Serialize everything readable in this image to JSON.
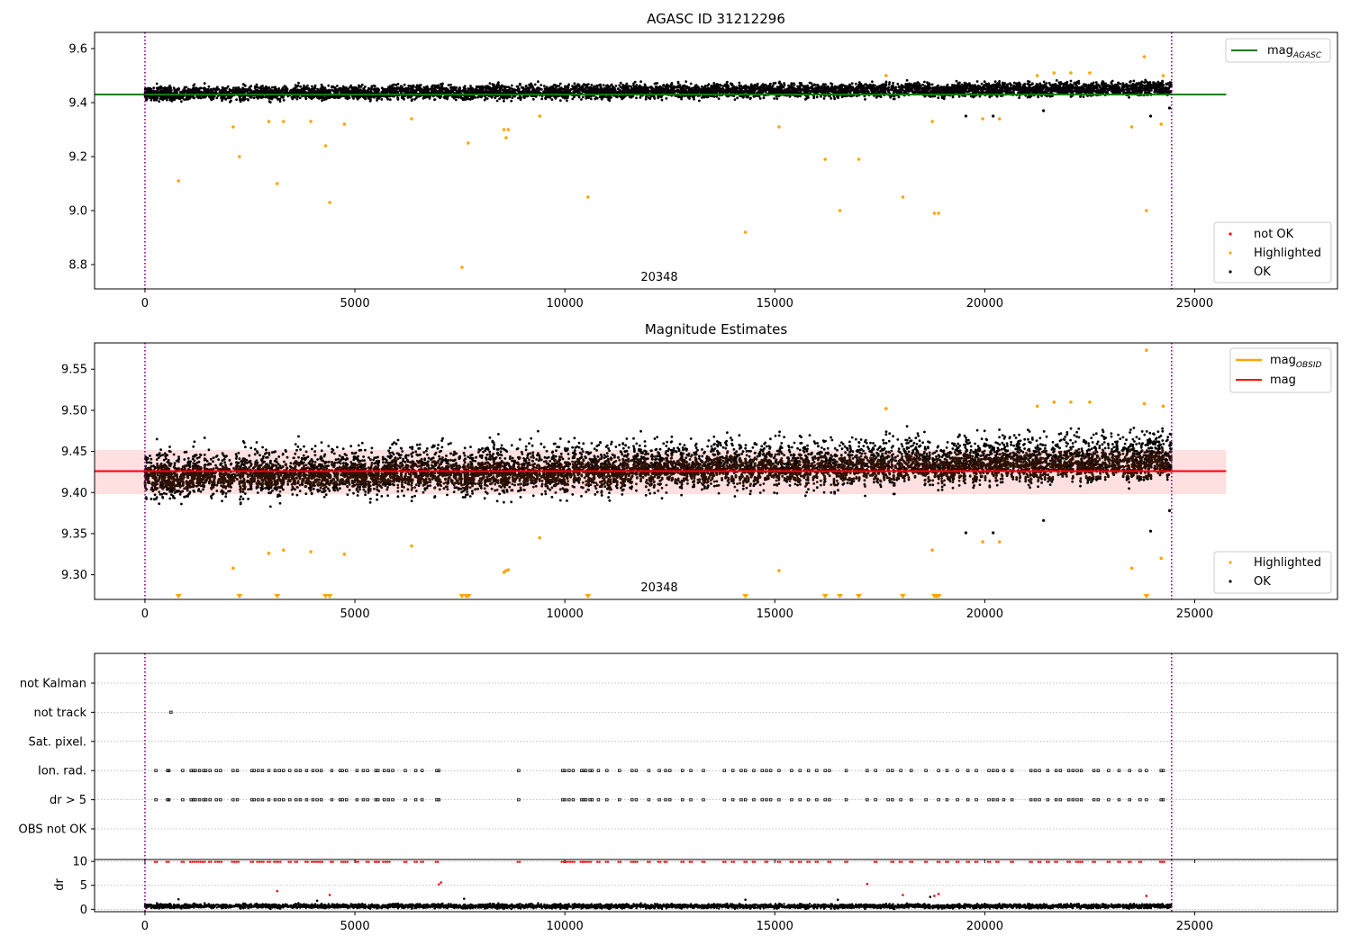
{
  "chart_data": [
    {
      "panel": "agasc",
      "type": "scatter",
      "title": "AGASC ID 31212296",
      "annotation": "20348",
      "xlim": [
        -1200,
        28400
      ],
      "ylim": [
        8.71,
        9.66
      ],
      "xticks": [
        0,
        5000,
        10000,
        15000,
        20000,
        25000
      ],
      "yticks": [
        8.8,
        9.0,
        9.2,
        9.4,
        9.6
      ],
      "ytick_format": 1,
      "vlines": [
        0,
        24450
      ],
      "line": {
        "name": "mag",
        "sub": "AGASC",
        "color": "#008000",
        "x": [
          -1200,
          25750
        ],
        "y": [
          9.43,
          9.43
        ]
      },
      "legend_top": [
        {
          "label": "mag",
          "sub": "AGASC",
          "color": "#008000",
          "kind": "line"
        }
      ],
      "legend_bottom": [
        {
          "label": "not OK",
          "color": "#ff0000",
          "kind": "marker"
        },
        {
          "label": "Highlighted",
          "color": "#ffa500",
          "kind": "marker"
        },
        {
          "label": "OK",
          "color": "#000000",
          "kind": "marker"
        }
      ],
      "ok_band": {
        "x": [
          0,
          24450
        ],
        "ylow_start": 9.395,
        "ylow_end": 9.415,
        "yhigh_start": 9.47,
        "yhigh_end": 9.49,
        "color": "#000000"
      },
      "highlighted": {
        "color": "#ffa500",
        "x": [
          800,
          2100,
          2250,
          2950,
          3150,
          3300,
          3950,
          4300,
          4400,
          4750,
          6350,
          7550,
          7700,
          8550,
          8600,
          8650,
          9400,
          10550,
          14300,
          15100,
          16200,
          16550,
          17000,
          17650,
          18050,
          18750,
          18800,
          18900,
          19950,
          20350,
          21250,
          21650,
          22050,
          22500,
          23500,
          23800,
          23850,
          24200,
          24250
        ],
        "y": [
          9.11,
          9.31,
          9.2,
          9.33,
          9.1,
          9.33,
          9.33,
          9.24,
          9.03,
          9.32,
          9.34,
          8.79,
          9.25,
          9.3,
          9.27,
          9.3,
          9.35,
          9.05,
          8.92,
          9.31,
          9.19,
          9.0,
          9.19,
          9.5,
          9.05,
          9.33,
          8.99,
          8.99,
          9.34,
          9.34,
          9.5,
          9.51,
          9.51,
          9.51,
          9.31,
          9.57,
          9.0,
          9.32,
          9.5
        ]
      },
      "ok_extra": {
        "color": "#000000",
        "x": [
          19550,
          20200,
          21400,
          23950,
          24400
        ],
        "y": [
          9.35,
          9.35,
          9.37,
          9.35,
          9.38
        ]
      }
    },
    {
      "panel": "magnitude",
      "type": "scatter",
      "title": "Magnitude Estimates",
      "annotation": "20348",
      "xlim": [
        -1200,
        28400
      ],
      "ylim": [
        9.27,
        9.582
      ],
      "xticks": [
        0,
        5000,
        10000,
        15000,
        20000,
        25000
      ],
      "yticks": [
        9.3,
        9.35,
        9.4,
        9.45,
        9.5,
        9.55
      ],
      "ytick_format": 2,
      "vlines": [
        0,
        24450
      ],
      "shaded_band": {
        "x": [
          -1200,
          25750
        ],
        "y": [
          9.398,
          9.452
        ],
        "color": "#ff0000",
        "opacity": 0.12
      },
      "line": {
        "name": "mag",
        "color": "#ff0000",
        "x": [
          -1200,
          25750
        ],
        "y": [
          9.426,
          9.426
        ]
      },
      "legend_top": [
        {
          "label": "mag",
          "sub": "OBSID",
          "color": "#ffa500",
          "kind": "line"
        },
        {
          "label": "mag",
          "sub": "",
          "color": "#ff0000",
          "kind": "line"
        }
      ],
      "legend_bottom": [
        {
          "label": "Highlighted",
          "color": "#ffa500",
          "kind": "marker"
        },
        {
          "label": "OK",
          "color": "#000000",
          "kind": "marker"
        }
      ],
      "ok_band": {
        "x": [
          0,
          24450
        ],
        "ylow_start": 9.375,
        "ylow_end": 9.4,
        "yhigh_start": 9.465,
        "yhigh_end": 9.49,
        "color": "#000000"
      },
      "inner_band": {
        "x": [
          0,
          24450
        ],
        "ylow_start": 9.395,
        "ylow_end": 9.41,
        "yhigh_start": 9.44,
        "yhigh_end": 9.46,
        "color": "#2e1100"
      },
      "highlighted": {
        "color": "#ffa500",
        "x": [
          2100,
          2950,
          3300,
          3950,
          4750,
          6350,
          8550,
          8600,
          8650,
          9400,
          15100,
          17650,
          18750,
          19950,
          20350,
          21250,
          21650,
          22050,
          22500,
          23500,
          23800,
          23850,
          24200,
          24250
        ],
        "y": [
          9.308,
          9.326,
          9.33,
          9.328,
          9.325,
          9.335,
          9.303,
          9.305,
          9.306,
          9.345,
          9.305,
          9.502,
          9.33,
          9.34,
          9.34,
          9.505,
          9.51,
          9.51,
          9.51,
          9.308,
          9.508,
          9.573,
          9.32,
          9.505
        ]
      },
      "ok_extra": {
        "color": "#000000",
        "x": [
          19550,
          20200,
          21400,
          23950,
          24400
        ],
        "y": [
          9.351,
          9.351,
          9.366,
          9.353,
          9.378
        ]
      },
      "off_scale_markers": {
        "color": "#ffa500",
        "x": [
          800,
          2250,
          3150,
          4300,
          4400,
          7550,
          7650,
          7700,
          10550,
          14300,
          16200,
          16550,
          17000,
          18050,
          18800,
          18850,
          18900,
          23850
        ]
      }
    },
    {
      "panel": "flags",
      "type": "scatter",
      "xlim": [
        -1200,
        28400
      ],
      "xticks": [
        0,
        5000,
        10000,
        15000,
        20000,
        25000
      ],
      "vlines": [
        0,
        24450
      ],
      "categories": [
        "not Kalman",
        "not track",
        "Sat. pixel.",
        "Ion. rad.",
        "dr > 5",
        "OBS not OK"
      ],
      "points": [
        {
          "category": "not track",
          "x": [
            620
          ]
        },
        {
          "category": "Ion. rad.",
          "x": [
            260,
            540,
            570,
            900,
            1100,
            1150,
            1200,
            1300,
            1400,
            1450,
            1550,
            1700,
            1800,
            2100,
            2200,
            2550,
            2600,
            2700,
            2800,
            2950,
            3100,
            3200,
            3300,
            3450,
            3600,
            3700,
            3850,
            4000,
            4100,
            4200,
            4450,
            4650,
            4700,
            4800,
            5050,
            5200,
            5300,
            5500,
            5550,
            5700,
            5800,
            5900,
            6200,
            6450,
            6600,
            6950,
            7000,
            8900,
            9950,
            10000,
            10100,
            10200,
            10400,
            10450,
            10500,
            10600,
            10650,
            10800,
            11000,
            11300,
            11600,
            11700,
            12000,
            12250,
            12400,
            12500,
            12800,
            13000,
            13300,
            13800,
            14000,
            14200,
            14300,
            14500,
            14700,
            14800,
            14900,
            15100,
            15400,
            15600,
            15800,
            16000,
            16200,
            16300,
            16700,
            17200,
            17400,
            17700,
            17800,
            18000,
            18250,
            18600,
            18900,
            19100,
            19350,
            19600,
            19800,
            20100,
            20200,
            20300,
            20450,
            20650,
            21100,
            21200,
            21300,
            21500,
            21700,
            21800,
            22000,
            22100,
            22200,
            22300,
            22600,
            22700,
            22950,
            23200,
            23450,
            23700,
            23850,
            24200,
            24250
          ]
        },
        {
          "category": "dr > 5",
          "x": [
            260,
            540,
            570,
            900,
            1100,
            1150,
            1200,
            1300,
            1400,
            1450,
            1550,
            1700,
            1800,
            2100,
            2200,
            2550,
            2600,
            2700,
            2800,
            2950,
            3100,
            3200,
            3300,
            3450,
            3600,
            3700,
            3850,
            4000,
            4100,
            4200,
            4450,
            4650,
            4700,
            4800,
            5050,
            5200,
            5300,
            5500,
            5550,
            5700,
            5800,
            5900,
            6200,
            6450,
            6600,
            6950,
            7000,
            8900,
            9950,
            10000,
            10100,
            10200,
            10400,
            10450,
            10500,
            10600,
            10650,
            10800,
            11000,
            11300,
            11600,
            11700,
            12000,
            12250,
            12400,
            12500,
            12800,
            13000,
            13300,
            13800,
            14000,
            14200,
            14300,
            14500,
            14700,
            14800,
            14900,
            15100,
            15400,
            15600,
            15800,
            16000,
            16200,
            16300,
            16700,
            17200,
            17400,
            17700,
            17800,
            18000,
            18250,
            18600,
            18900,
            19100,
            19350,
            19600,
            19800,
            20100,
            20200,
            20300,
            20450,
            20650,
            21100,
            21200,
            21300,
            21500,
            21700,
            21800,
            22000,
            22100,
            22200,
            22300,
            22600,
            22700,
            22950,
            23200,
            23450,
            23700,
            23850,
            24200,
            24250
          ]
        }
      ]
    },
    {
      "panel": "dr",
      "type": "scatter",
      "ylabel": "dr",
      "xlim": [
        -1200,
        28400
      ],
      "ylim": [
        -0.5,
        10.4
      ],
      "xticks": [
        0,
        5000,
        10000,
        15000,
        20000,
        25000
      ],
      "yticks": [
        0,
        5,
        10
      ],
      "vlines": [
        0,
        24450
      ],
      "ok_band": {
        "x": [
          0,
          24450
        ],
        "ylow_start": 0.0,
        "ylow_end": 0.0,
        "yhigh_start": 1.3,
        "yhigh_end": 1.3,
        "color": "#000000"
      },
      "flagged": {
        "color": "#ff0000",
        "y_at_clip": 9.9,
        "x": [
          260,
          540,
          900,
          1100,
          1200,
          1300,
          1400,
          1550,
          1700,
          1800,
          2100,
          2200,
          2550,
          2700,
          2800,
          2950,
          3100,
          3200,
          3450,
          3600,
          3850,
          4000,
          4100,
          4200,
          4450,
          4700,
          4800,
          5050,
          5300,
          5500,
          5550,
          5700,
          5800,
          6200,
          6450,
          6600,
          6950,
          8900,
          9950,
          10000,
          10100,
          10200,
          10400,
          10450,
          10500,
          10600,
          10800,
          11000,
          11300,
          11600,
          11700,
          12000,
          12250,
          12400,
          12800,
          13000,
          13300,
          13800,
          14000,
          14300,
          14500,
          14800,
          15100,
          15400,
          15600,
          15800,
          16000,
          16300,
          16700,
          17400,
          17800,
          18000,
          18250,
          18600,
          18900,
          19100,
          19350,
          19600,
          19800,
          20100,
          20300,
          20650,
          21100,
          21300,
          21500,
          21700,
          22000,
          22200,
          22300,
          22600,
          22950,
          23200,
          23450,
          23700,
          24200,
          24250
        ],
        "extra_x": [
          3150,
          4400,
          7000,
          7050,
          17200,
          18050,
          18800,
          18900,
          23850
        ],
        "extra_y": [
          3.8,
          3.0,
          5.2,
          5.6,
          5.3,
          3.0,
          2.8,
          3.2,
          2.8
        ]
      },
      "outliers": {
        "color": "#000000",
        "x": [
          800,
          4100,
          7600,
          14300,
          16500,
          18700
        ],
        "y": [
          2.1,
          1.8,
          2.2,
          2.0,
          2.0,
          2.6
        ]
      }
    }
  ]
}
